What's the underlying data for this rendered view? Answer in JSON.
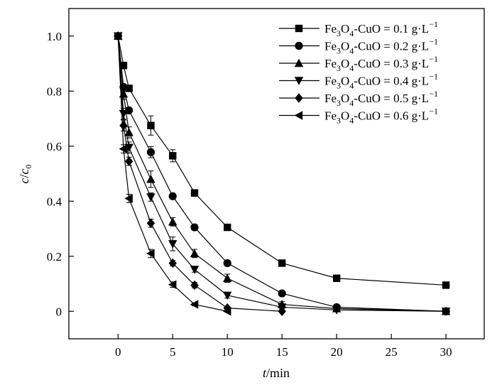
{
  "chart_data": {
    "type": "line",
    "title": "",
    "xlabel": {
      "italic": "t",
      "rest": "/min"
    },
    "ylabel": {
      "italic1": "c",
      "slash": "/",
      "italic2": "c",
      "sub": "0"
    },
    "xlim": [
      -4.5,
      33.5
    ],
    "ylim": [
      -0.1,
      1.1
    ],
    "xticks": [
      0,
      5,
      10,
      15,
      20,
      25,
      30
    ],
    "yticks": [
      0,
      0.2,
      0.4,
      0.6,
      0.8,
      1.0
    ],
    "xtick_labels": [
      "0",
      "5",
      "10",
      "15",
      "20",
      "25",
      "30"
    ],
    "ytick_labels": [
      "0",
      "0.2",
      "0.4",
      "0.6",
      "0.8",
      "1.0"
    ],
    "legend_position": "top-right",
    "grid": false,
    "line_color": "#000000",
    "series": [
      {
        "name": "Fe3O4-CuO = 0.1 g·L−1",
        "legend": {
          "a": "Fe",
          "s1": "3",
          "b": "O",
          "s2": "4",
          "c": "-CuO = 0.1 g·L",
          "sup": "−1"
        },
        "marker": "square",
        "x": [
          0,
          0.5,
          1,
          3,
          5,
          7,
          10,
          15,
          20,
          30
        ],
        "y": [
          1.0,
          0.893,
          0.81,
          0.675,
          0.565,
          0.43,
          0.305,
          0.175,
          0.12,
          0.095
        ],
        "err": [
          0,
          0.01,
          0.01,
          0.035,
          0.022,
          0.012,
          0.01,
          0.008,
          0.008,
          0.008
        ]
      },
      {
        "name": "Fe3O4-CuO = 0.2 g·L−1",
        "legend": {
          "a": "Fe",
          "s1": "3",
          "b": "O",
          "s2": "4",
          "c": "-CuO = 0.2 g·L",
          "sup": "−1"
        },
        "marker": "circle",
        "x": [
          0,
          0.5,
          1,
          3,
          5,
          7,
          10,
          15,
          20,
          30
        ],
        "y": [
          1.0,
          0.815,
          0.73,
          0.578,
          0.418,
          0.305,
          0.175,
          0.065,
          0.015,
          0.0
        ],
        "err": [
          0,
          0.01,
          0.01,
          0.02,
          0.01,
          0.01,
          0.01,
          0.006,
          0.005,
          0.004
        ]
      },
      {
        "name": "Fe3O4-CuO = 0.3 g·L−1",
        "legend": {
          "a": "Fe",
          "s1": "3",
          "b": "O",
          "s2": "4",
          "c": "-CuO = 0.3 g·L",
          "sup": "−1"
        },
        "marker": "triangle-up",
        "x": [
          0,
          0.5,
          1,
          3,
          5,
          7,
          10,
          15,
          20,
          30
        ],
        "y": [
          1.0,
          0.79,
          0.65,
          0.48,
          0.325,
          0.21,
          0.12,
          0.025,
          0.01,
          0.0
        ],
        "err": [
          0,
          0.02,
          0.02,
          0.03,
          0.015,
          0.015,
          0.015,
          0.01,
          0.005,
          0.004
        ]
      },
      {
        "name": "Fe3O4-CuO = 0.4 g·L−1",
        "legend": {
          "a": "Fe",
          "s1": "3",
          "b": "O",
          "s2": "4",
          "c": "-CuO = 0.4 g·L",
          "sup": "−1"
        },
        "marker": "triangle-down",
        "x": [
          0,
          0.5,
          1,
          3,
          5,
          7,
          10,
          15,
          20,
          30
        ],
        "y": [
          1.0,
          0.718,
          0.595,
          0.415,
          0.245,
          0.152,
          0.058,
          0.015,
          0.005,
          0.0
        ],
        "err": [
          0,
          0.02,
          0.02,
          0.015,
          0.025,
          0.01,
          0.01,
          0.005,
          0.005,
          0.004
        ]
      },
      {
        "name": "Fe3O4-CuO = 0.5 g·L−1",
        "legend": {
          "a": "Fe",
          "s1": "3",
          "b": "O",
          "s2": "4",
          "c": "-CuO = 0.5 g·L",
          "sup": "−1"
        },
        "marker": "diamond",
        "x": [
          0,
          0.5,
          1,
          3,
          5,
          7,
          10,
          15
        ],
        "y": [
          1.0,
          0.675,
          0.545,
          0.32,
          0.175,
          0.095,
          0.012,
          0.0
        ],
        "err": [
          0,
          0.02,
          0.015,
          0.015,
          0.01,
          0.01,
          0.005,
          0.004
        ]
      },
      {
        "name": "Fe3O4-CuO = 0.6 g·L−1",
        "legend": {
          "a": "Fe",
          "s1": "3",
          "b": "O",
          "s2": "4",
          "c": "-CuO = 0.6 g·L",
          "sup": "−1"
        },
        "marker": "triangle-left",
        "x": [
          0,
          0.5,
          1,
          3,
          5,
          7,
          10
        ],
        "y": [
          1.0,
          0.59,
          0.41,
          0.21,
          0.097,
          0.025,
          0.0
        ],
        "err": [
          0,
          0.015,
          0.015,
          0.015,
          0.01,
          0.005,
          0.004
        ]
      }
    ]
  }
}
